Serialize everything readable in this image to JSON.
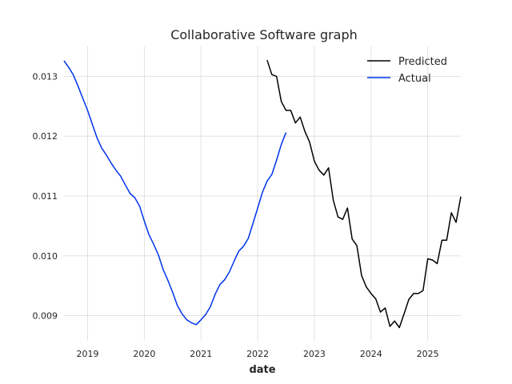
{
  "chart_data": {
    "type": "line",
    "title": "Collaborative Software graph",
    "xlabel": "date",
    "ylabel": "",
    "x_ticks": [
      "2019",
      "2020",
      "2021",
      "2022",
      "2023",
      "2024",
      "2025"
    ],
    "y_ticks": [
      "0.009",
      "0.010",
      "0.011",
      "0.012",
      "0.013"
    ],
    "xlim": [
      "2018-08",
      "2025-08"
    ],
    "ylim": [
      0.00858,
      0.0135
    ],
    "grid": true,
    "legend": "top-right",
    "series": [
      {
        "name": "Predicted",
        "color": "#000000",
        "points": [
          [
            "2022-03",
            0.01327
          ],
          [
            "2022-04",
            0.01303
          ],
          [
            "2022-05",
            0.013
          ],
          [
            "2022-06",
            0.01258
          ],
          [
            "2022-07",
            0.01243
          ],
          [
            "2022-08",
            0.01243
          ],
          [
            "2022-09",
            0.01222
          ],
          [
            "2022-10",
            0.01232
          ],
          [
            "2022-11",
            0.01208
          ],
          [
            "2022-12",
            0.0119
          ],
          [
            "2023-01",
            0.01158
          ],
          [
            "2023-02",
            0.01143
          ],
          [
            "2023-03",
            0.01135
          ],
          [
            "2023-04",
            0.01147
          ],
          [
            "2023-05",
            0.01093
          ],
          [
            "2023-06",
            0.01065
          ],
          [
            "2023-07",
            0.01061
          ],
          [
            "2023-08",
            0.0108
          ],
          [
            "2023-09",
            0.01028
          ],
          [
            "2023-10",
            0.01017
          ],
          [
            "2023-11",
            0.00967
          ],
          [
            "2023-12",
            0.00948
          ],
          [
            "2024-01",
            0.00937
          ],
          [
            "2024-02",
            0.00928
          ],
          [
            "2024-03",
            0.00906
          ],
          [
            "2024-04",
            0.00913
          ],
          [
            "2024-05",
            0.00882
          ],
          [
            "2024-06",
            0.00891
          ],
          [
            "2024-07",
            0.0088
          ],
          [
            "2024-08",
            0.00903
          ],
          [
            "2024-09",
            0.00927
          ],
          [
            "2024-10",
            0.00937
          ],
          [
            "2024-11",
            0.00937
          ],
          [
            "2024-12",
            0.00942
          ],
          [
            "2025-01",
            0.00995
          ],
          [
            "2025-02",
            0.00993
          ],
          [
            "2025-03",
            0.00987
          ],
          [
            "2025-04",
            0.01026
          ],
          [
            "2025-05",
            0.01026
          ],
          [
            "2025-06",
            0.01072
          ],
          [
            "2025-07",
            0.01056
          ],
          [
            "2025-08",
            0.01099
          ]
        ]
      },
      {
        "name": "Actual",
        "color": "#0033ee",
        "points": [
          [
            "2018-08",
            0.01326
          ],
          [
            "2018-09",
            0.01315
          ],
          [
            "2018-10",
            0.01302
          ],
          [
            "2018-11",
            0.01283
          ],
          [
            "2018-12",
            0.01263
          ],
          [
            "2019-01",
            0.01243
          ],
          [
            "2019-02",
            0.0122
          ],
          [
            "2019-03",
            0.01197
          ],
          [
            "2019-04",
            0.0118
          ],
          [
            "2019-05",
            0.01168
          ],
          [
            "2019-06",
            0.01155
          ],
          [
            "2019-07",
            0.01143
          ],
          [
            "2019-08",
            0.01133
          ],
          [
            "2019-09",
            0.01118
          ],
          [
            "2019-10",
            0.01104
          ],
          [
            "2019-11",
            0.01097
          ],
          [
            "2019-12",
            0.01083
          ],
          [
            "2020-01",
            0.01058
          ],
          [
            "2020-02",
            0.01035
          ],
          [
            "2020-03",
            0.01019
          ],
          [
            "2020-04",
            0.01001
          ],
          [
            "2020-05",
            0.00977
          ],
          [
            "2020-06",
            0.00959
          ],
          [
            "2020-07",
            0.00939
          ],
          [
            "2020-08",
            0.00917
          ],
          [
            "2020-09",
            0.00903
          ],
          [
            "2020-10",
            0.00893
          ],
          [
            "2020-11",
            0.00888
          ],
          [
            "2020-12",
            0.00885
          ],
          [
            "2021-01",
            0.00893
          ],
          [
            "2021-02",
            0.00902
          ],
          [
            "2021-03",
            0.00915
          ],
          [
            "2021-04",
            0.00936
          ],
          [
            "2021-05",
            0.00952
          ],
          [
            "2021-06",
            0.0096
          ],
          [
            "2021-07",
            0.00973
          ],
          [
            "2021-08",
            0.00991
          ],
          [
            "2021-09",
            0.01008
          ],
          [
            "2021-10",
            0.01016
          ],
          [
            "2021-11",
            0.01029
          ],
          [
            "2021-12",
            0.01054
          ],
          [
            "2022-01",
            0.0108
          ],
          [
            "2022-02",
            0.01106
          ],
          [
            "2022-03",
            0.01125
          ],
          [
            "2022-04",
            0.01136
          ],
          [
            "2022-05",
            0.0116
          ],
          [
            "2022-06",
            0.01186
          ],
          [
            "2022-07",
            0.01206
          ]
        ]
      }
    ]
  }
}
